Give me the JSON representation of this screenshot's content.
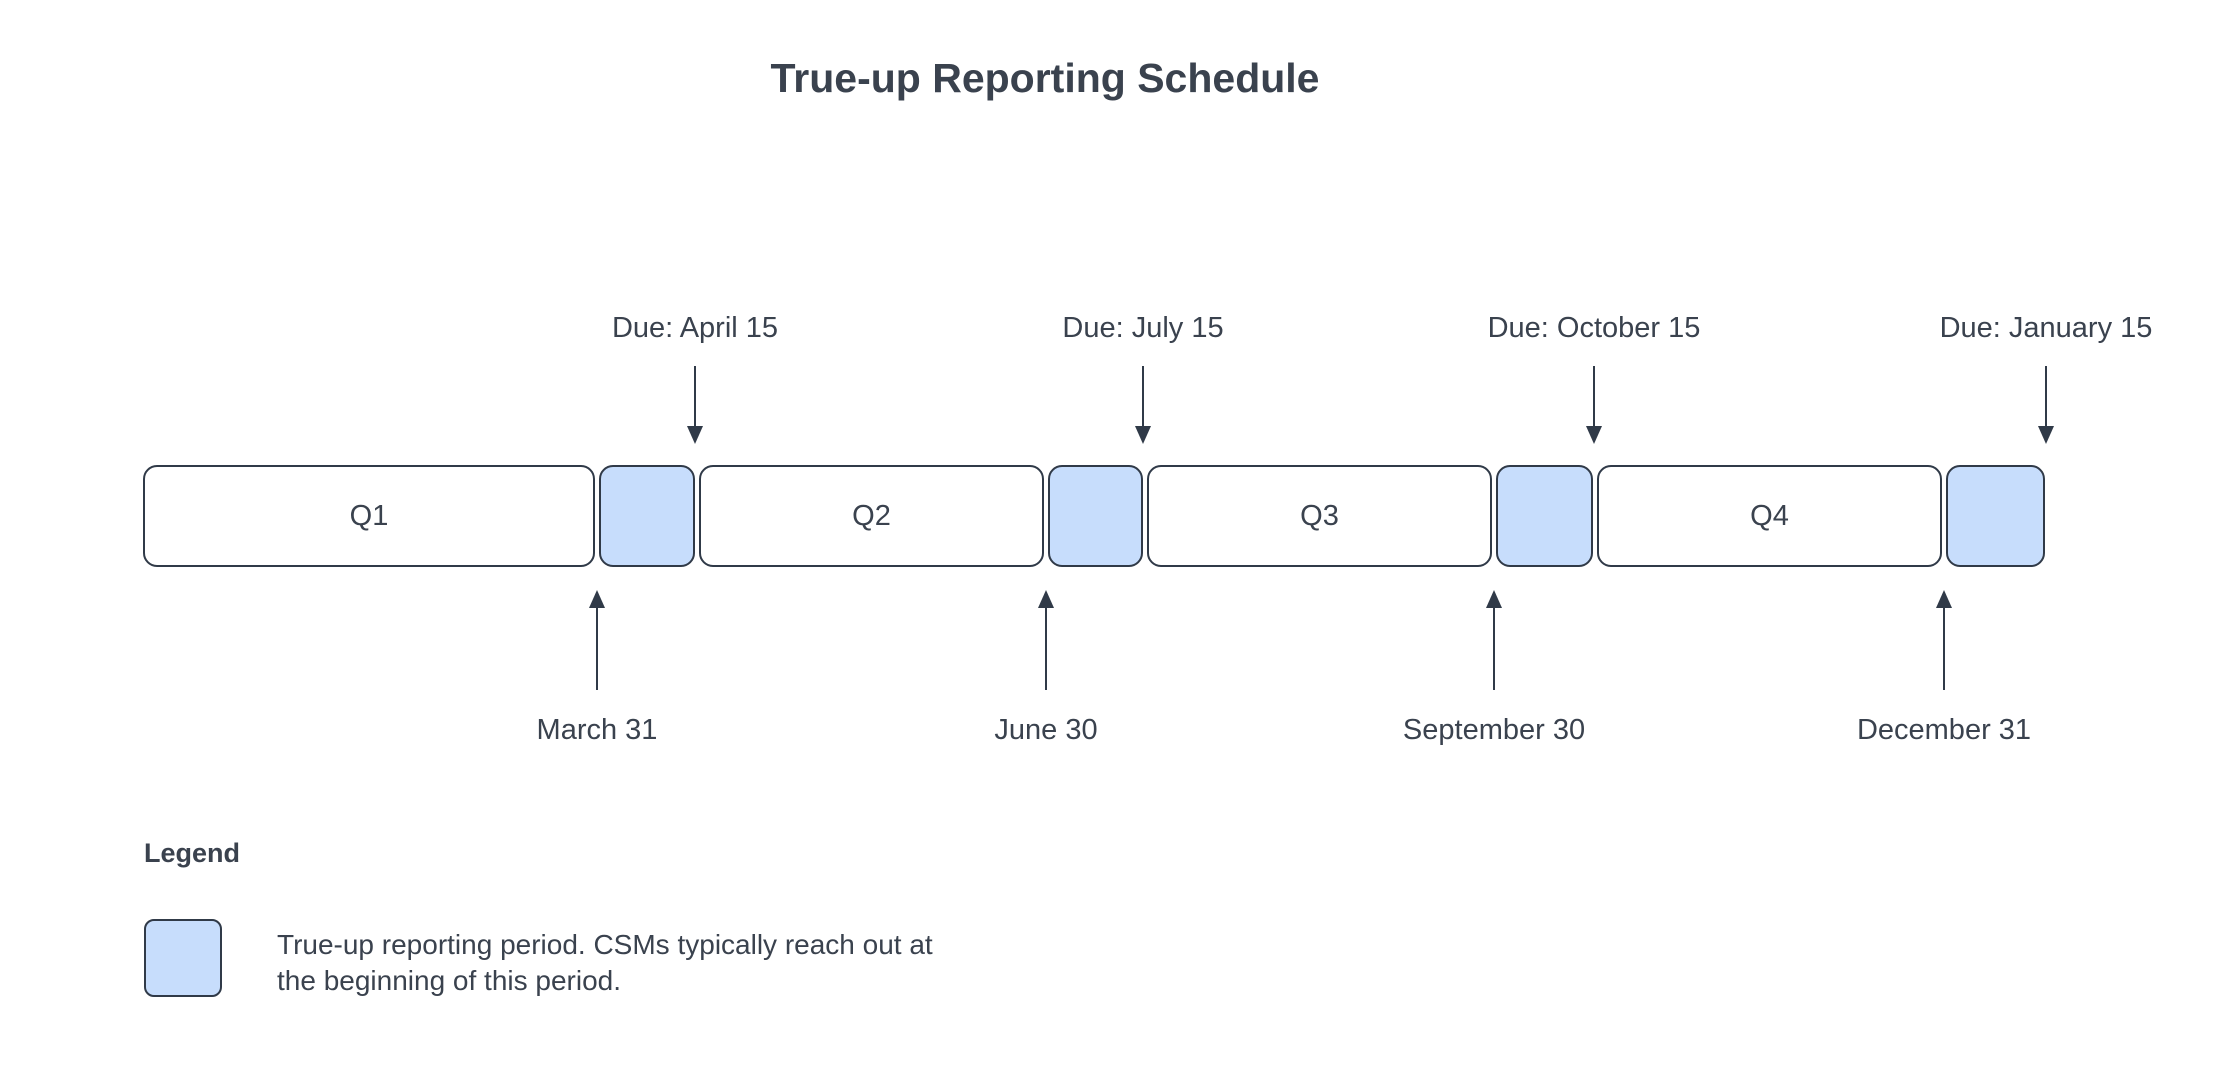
{
  "title": "True-up Reporting Schedule",
  "timeline": {
    "quarters": [
      "Q1",
      "Q2",
      "Q3",
      "Q4"
    ],
    "due_dates": [
      "Due: April 15",
      "Due: July 15",
      "Due: October 15",
      "Due: January 15"
    ],
    "quarter_end_dates": [
      "March 31",
      "June 30",
      "September 30",
      "December 31"
    ]
  },
  "legend": {
    "heading": "Legend",
    "description_line1": "True-up reporting period. CSMs typically reach out at",
    "description_line2": "the beginning of this period."
  },
  "colors": {
    "ink": "#3a424e",
    "stroke": "#303a48",
    "trueup_fill": "#c7ddfc"
  }
}
